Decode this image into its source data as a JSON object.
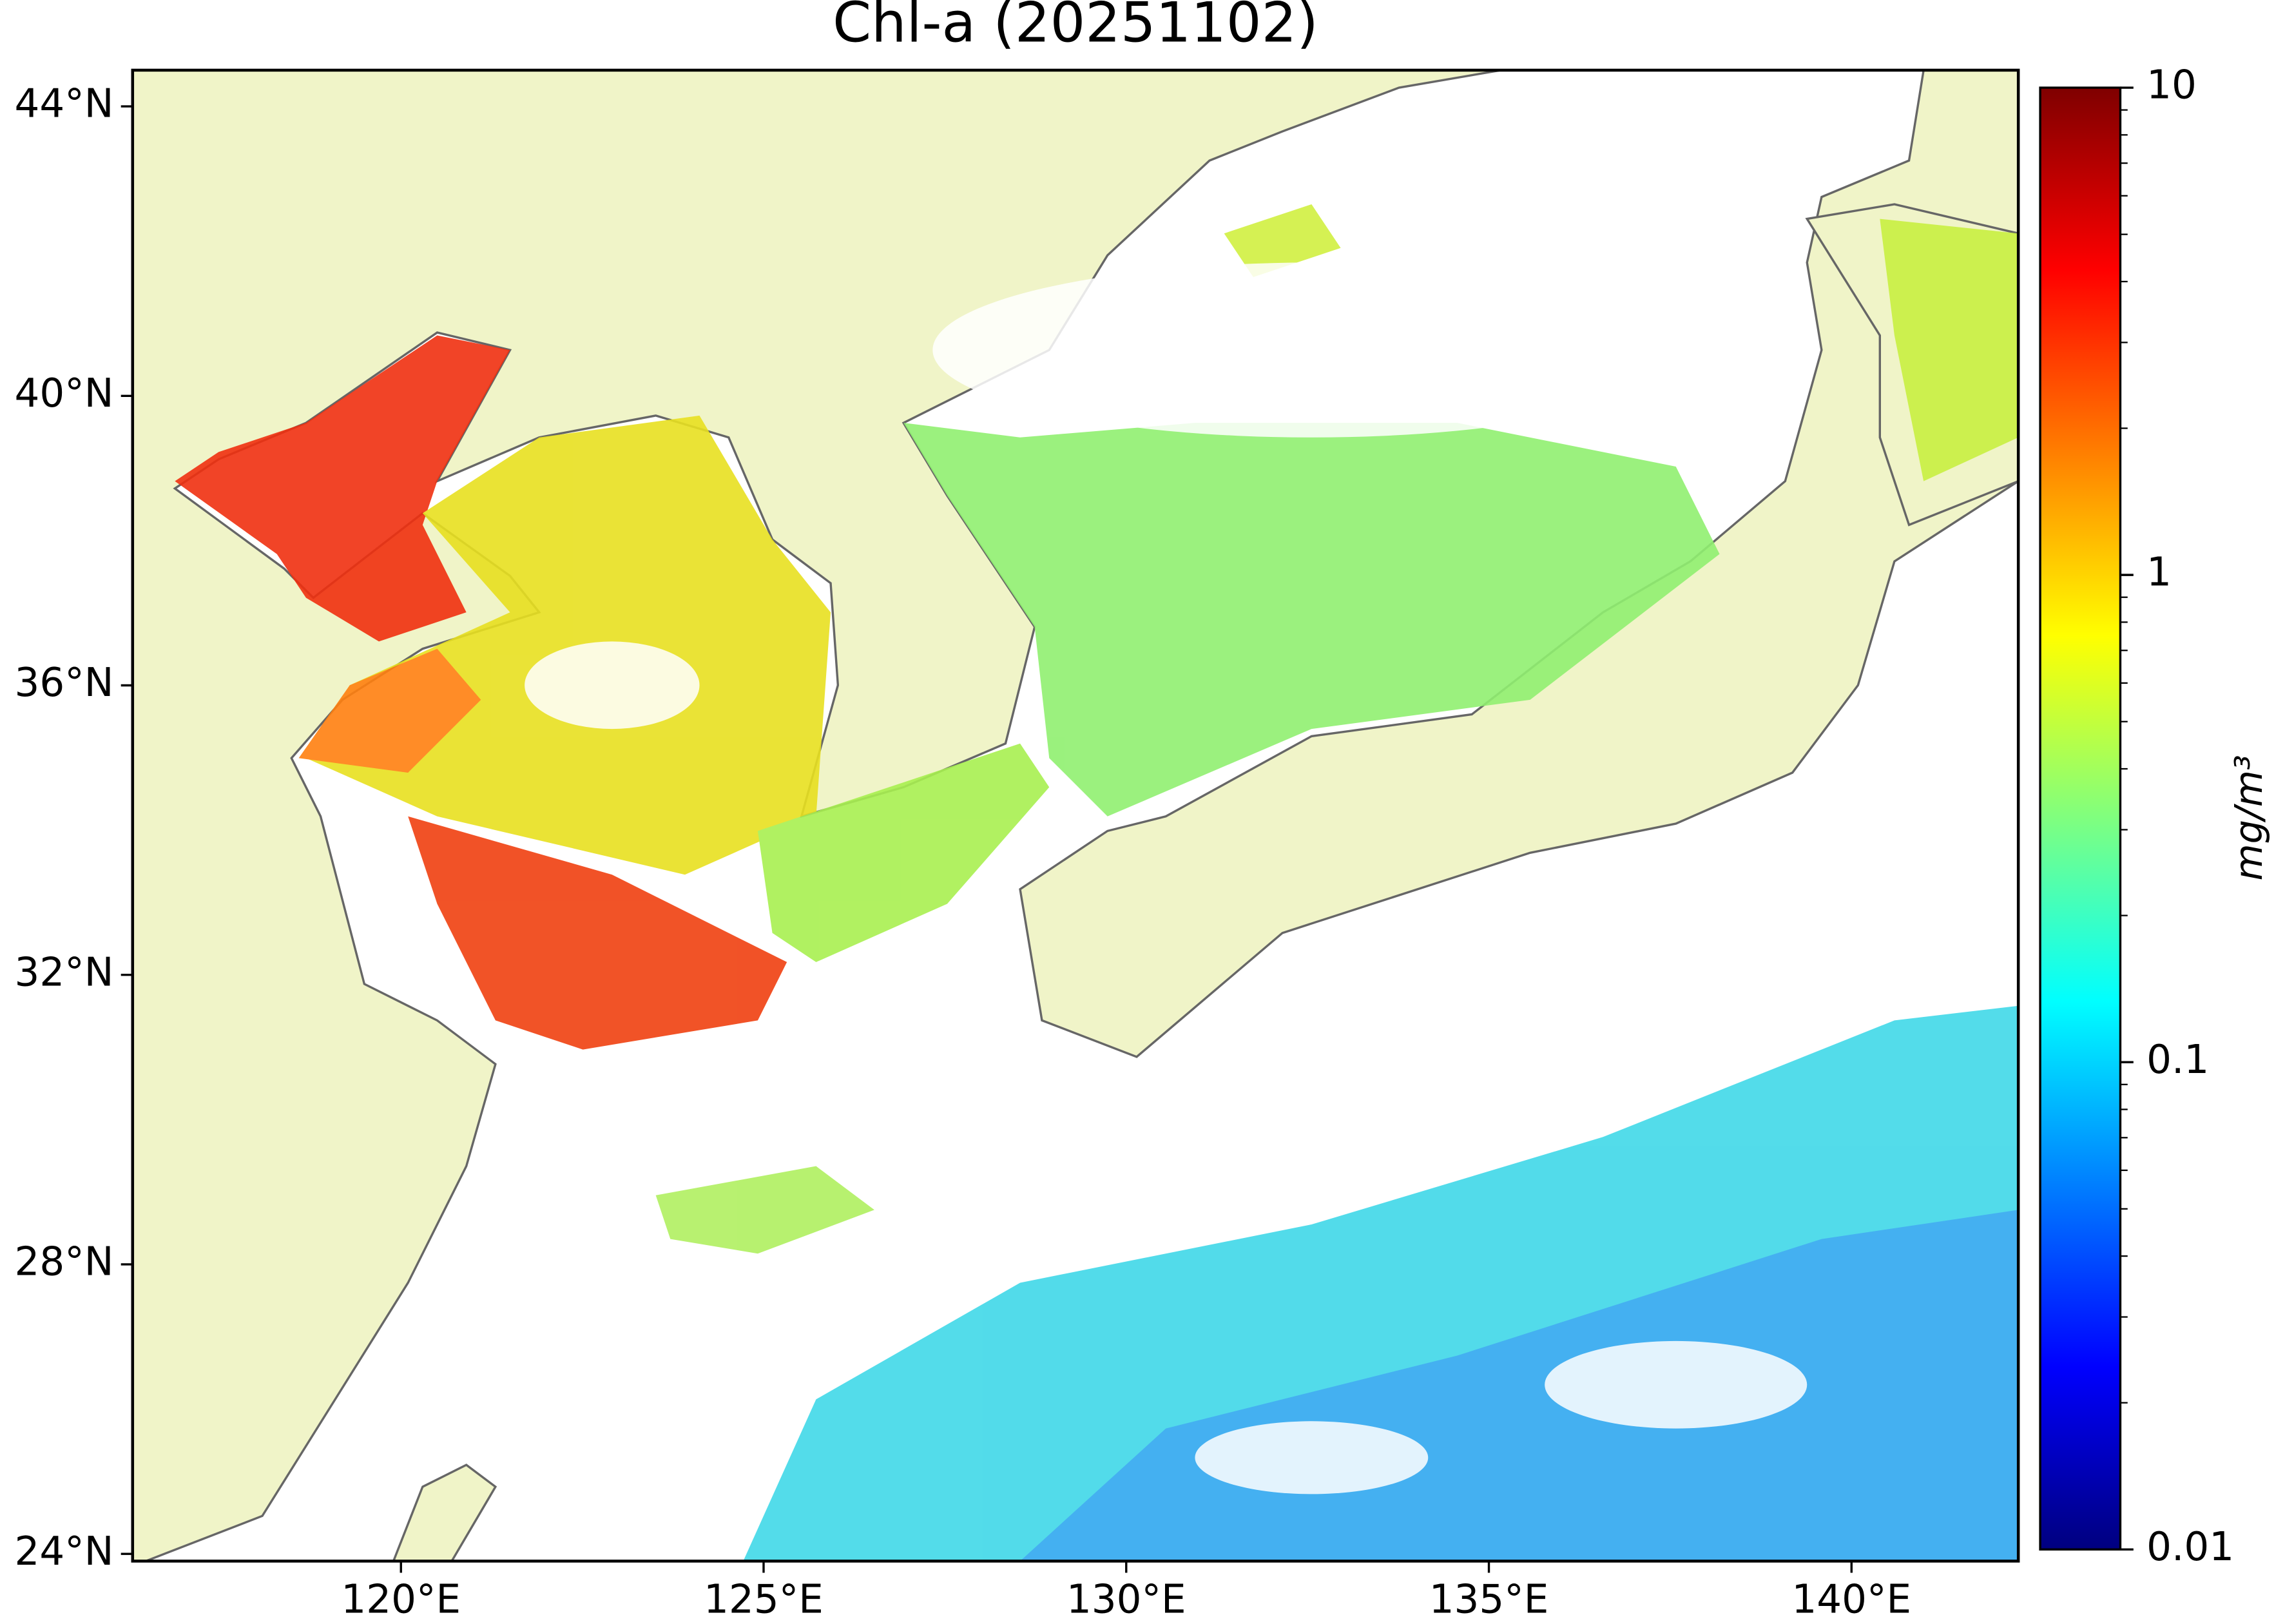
{
  "map": {
    "title": "Chl-a (20251102)",
    "xlim": [
      116.3,
      142.3
    ],
    "ylim": [
      23.9,
      44.5
    ],
    "xticks": [
      {
        "value": 120,
        "label": "120°E"
      },
      {
        "value": 125,
        "label": "125°E"
      },
      {
        "value": 130,
        "label": "130°E"
      },
      {
        "value": 135,
        "label": "135°E"
      },
      {
        "value": 140,
        "label": "140°E"
      }
    ],
    "yticks": [
      {
        "value": 24,
        "label": "24°N"
      },
      {
        "value": 28,
        "label": "28°N"
      },
      {
        "value": 32,
        "label": "32°N"
      },
      {
        "value": 36,
        "label": "36°N"
      },
      {
        "value": 40,
        "label": "40°N"
      },
      {
        "value": 44,
        "label": "44°N"
      }
    ],
    "colorbar": {
      "label": "mg/m³",
      "scale": "log",
      "lim": [
        0.01,
        10
      ],
      "ticks": [
        0.01,
        0.1,
        1,
        10
      ],
      "colors": [
        "#00007f",
        "#0000ff",
        "#007fff",
        "#00ffff",
        "#7fff7f",
        "#ffff00",
        "#ff7f00",
        "#ff0000",
        "#7f0000"
      ]
    }
  }
}
